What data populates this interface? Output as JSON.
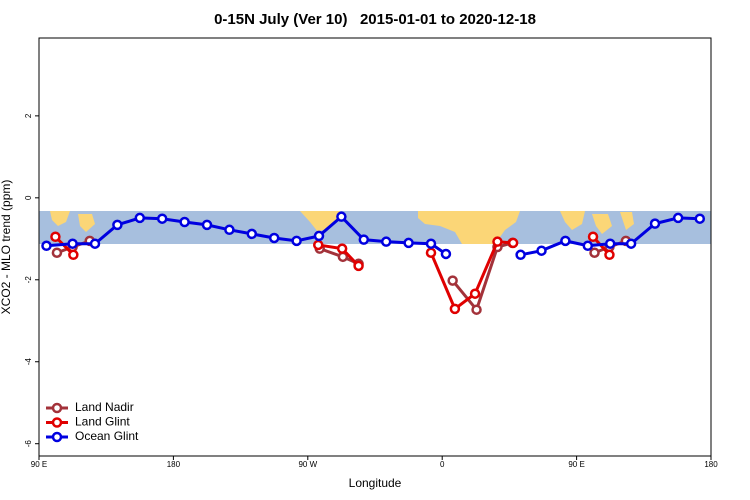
{
  "chart_data": {
    "type": "line",
    "title": "0-15N July (Ver 10)   2015-01-01 to 2020-12-18",
    "x_label": "Longitude",
    "y_label": "XCO2 - MLO trend (ppm)",
    "xlim": [
      90,
      540
    ],
    "ylim": [
      -6.3,
      3.9
    ],
    "xticks": [
      {
        "value": 90,
        "label": "90 E"
      },
      180,
      {
        "value": 270,
        "label": "90 W"
      },
      {
        "value": 360,
        "label": "0"
      },
      {
        "value": 450,
        "label": "90 E"
      },
      {
        "value": 540,
        "label": "180"
      }
    ],
    "yticks": [
      2,
      0,
      -2,
      -4,
      -6
    ],
    "legend": "bottom-left",
    "series": [
      {
        "name": "Land Nadir",
        "color": "#a3323a",
        "x": [
          102,
          112.5,
          124,
          200,
          278,
          293.5,
          304,
          340,
          367,
          383,
          397,
          407,
          440,
          462,
          472,
          483
        ],
        "values": [
          -1.34,
          -1.2,
          -1.05,
          null,
          -1.24,
          -1.44,
          -1.61,
          null,
          -2.02,
          -2.73,
          -1.2,
          -1.1,
          null,
          -1.34,
          -1.2,
          -1.05
        ]
      },
      {
        "name": "Land Glint",
        "color": "#e00000",
        "x": [
          101,
          113,
          200,
          277,
          293,
          304,
          330,
          352.5,
          368.5,
          382,
          397,
          407.5,
          440,
          461,
          472
        ],
        "values": [
          -0.95,
          -1.39,
          null,
          -1.15,
          -1.24,
          -1.66,
          null,
          -1.34,
          -2.71,
          -2.34,
          -1.07,
          -1.1,
          null,
          -0.95,
          -1.39
        ]
      },
      {
        "name": "Ocean Glint",
        "color": "#0000e0",
        "x": [
          95,
          112.5,
          127.5,
          142.5,
          157.5,
          172.5,
          187.5,
          202.5,
          217.5,
          232.5,
          247.5,
          262.5,
          277.5,
          292.5,
          307.5,
          322.5,
          337.5,
          352.5,
          362.5,
          387.5,
          412.5,
          426.5,
          442.5,
          457.5,
          472.5,
          486.5,
          502.5,
          518,
          532.5
        ],
        "values": [
          -1.17,
          -1.12,
          -1.12,
          -0.66,
          -0.49,
          -0.51,
          -0.59,
          -0.66,
          -0.78,
          -0.88,
          -0.98,
          -1.05,
          -0.93,
          -0.46,
          -1.02,
          -1.07,
          -1.1,
          -1.12,
          -1.37,
          null,
          -1.39,
          -1.29,
          -1.05,
          -1.17,
          -1.12,
          -1.12,
          -0.63,
          -0.49,
          -0.51
        ]
      }
    ]
  }
}
